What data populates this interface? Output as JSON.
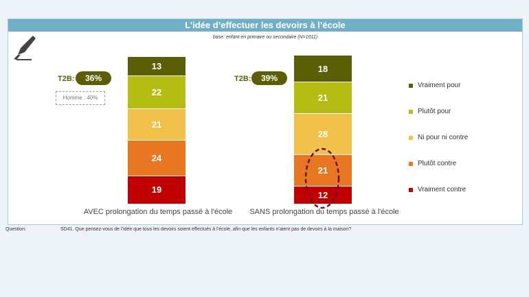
{
  "title": "L’idée d’effectuer les devoirs à l’école",
  "base": "base: enfant en primaire ou secondaire (N=1011)",
  "t2b_label": "T2B:",
  "note": "Homme : 40%",
  "question_label": "Question:",
  "question": "SD41. Que pensez-vous de l’idée que tous les devoirs soient effectués à l’école, afin que les enfants n’aient pas de devoirs à la maison?",
  "icon": "fountain-pen-icon",
  "chart_data": {
    "type": "bar",
    "stacked": true,
    "categories": [
      "AVEC prolongation du temps passé à l'école",
      "SANS prolongation du temps passé à l'école"
    ],
    "t2b": [
      "36%",
      "39%"
    ],
    "series": [
      {
        "name": "Vraiment pour",
        "color": "#5a5e05",
        "values": [
          13,
          18
        ]
      },
      {
        "name": "Plutôt pour",
        "color": "#b5bd12",
        "values": [
          22,
          21
        ]
      },
      {
        "name": "Ni pour ni contre",
        "color": "#f2c14b",
        "values": [
          21,
          28
        ]
      },
      {
        "name": "Plutôt contre",
        "color": "#e87722",
        "values": [
          24,
          21
        ]
      },
      {
        "name": "Vraiment contre",
        "color": "#c00000",
        "values": [
          19,
          12
        ]
      }
    ],
    "legend": "right",
    "highlight": "SANS prolongation: Plutôt contre circled"
  }
}
